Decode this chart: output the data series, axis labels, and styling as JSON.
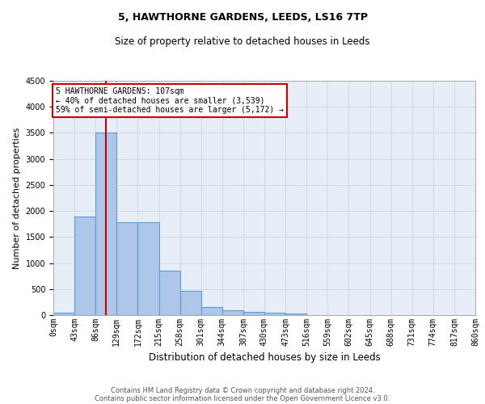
{
  "title1": "5, HAWTHORNE GARDENS, LEEDS, LS16 7TP",
  "title2": "Size of property relative to detached houses in Leeds",
  "xlabel": "Distribution of detached houses by size in Leeds",
  "ylabel": "Number of detached properties",
  "footer1": "Contains HM Land Registry data © Crown copyright and database right 2024.",
  "footer2": "Contains public sector information licensed under the Open Government Licence v3.0.",
  "annotation_line1": "5 HAWTHORNE GARDENS: 107sqm",
  "annotation_line2": "← 40% of detached houses are smaller (3,539)",
  "annotation_line3": "59% of semi-detached houses are larger (5,172) →",
  "property_size": 107,
  "bar_edges": [
    0,
    43,
    86,
    129,
    172,
    215,
    258,
    301,
    344,
    387,
    430,
    473,
    516,
    559,
    602,
    645,
    688,
    731,
    774,
    817,
    860
  ],
  "bar_heights": [
    50,
    1900,
    3500,
    1780,
    1780,
    850,
    460,
    160,
    100,
    60,
    50,
    30,
    0,
    0,
    0,
    0,
    0,
    0,
    0,
    0
  ],
  "bar_color": "#aec6e8",
  "bar_edge_color": "#5b9bd5",
  "vline_color": "#cc0000",
  "vline_x": 107,
  "annotation_box_color": "#cc0000",
  "grid_color": "#d0d8e8",
  "background_color": "#e8eef8",
  "ylim": [
    0,
    4500
  ],
  "yticks": [
    0,
    500,
    1000,
    1500,
    2000,
    2500,
    3000,
    3500,
    4000,
    4500
  ],
  "title1_fontsize": 9,
  "title2_fontsize": 8.5,
  "ylabel_fontsize": 8,
  "xlabel_fontsize": 8.5,
  "footer_fontsize": 6,
  "tick_fontsize": 7
}
